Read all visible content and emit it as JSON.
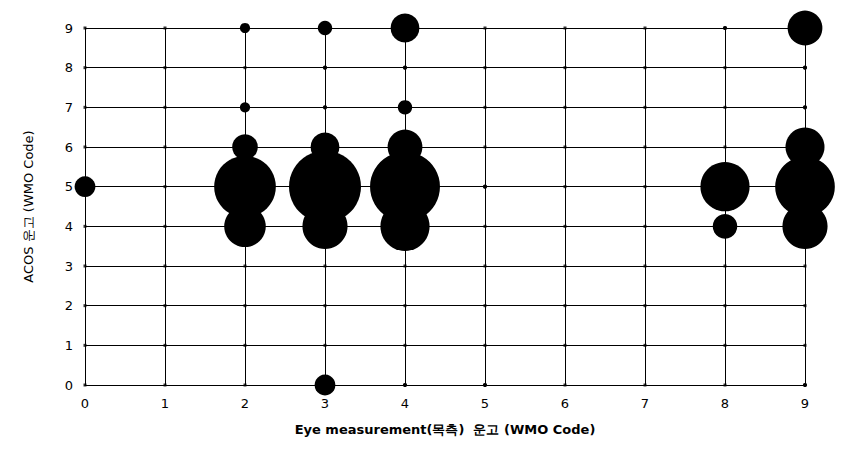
{
  "chart_data": {
    "type": "scatter",
    "marker": "circle",
    "color": "#000000",
    "x_label": "Eye measurement(목측)  운고 (WMO Code)",
    "y_label": "ACOS 운고 (WMO Code)",
    "x": [
      0,
      2,
      2,
      2,
      2,
      2,
      3,
      3,
      3,
      3,
      3,
      4,
      4,
      4,
      4,
      4,
      8,
      8,
      9,
      9,
      9,
      9,
      3,
      3,
      4,
      5,
      4,
      5,
      8,
      9,
      9,
      9
    ],
    "y": [
      5,
      9,
      7,
      6,
      5,
      4,
      9,
      6,
      5,
      4,
      0,
      9,
      7,
      6,
      5,
      4,
      5,
      4,
      9,
      6,
      5,
      4,
      8,
      7,
      8,
      5,
      0,
      0,
      9,
      8,
      7,
      0
    ],
    "sizes": [
      25,
      6,
      6,
      38,
      220,
      100,
      12,
      48,
      300,
      118,
      25,
      48,
      12,
      70,
      283,
      140,
      140,
      35,
      70,
      88,
      206,
      118,
      1,
      1,
      1,
      1,
      1,
      1,
      1,
      1,
      1,
      1
    ],
    "xlim": [
      0,
      9
    ],
    "ylim": [
      0,
      9
    ],
    "xticks": [
      0,
      1,
      2,
      3,
      4,
      5,
      6,
      7,
      8,
      9
    ],
    "yticks": [
      0,
      1,
      2,
      3,
      4,
      5,
      6,
      7,
      8,
      9
    ],
    "grid": true
  }
}
